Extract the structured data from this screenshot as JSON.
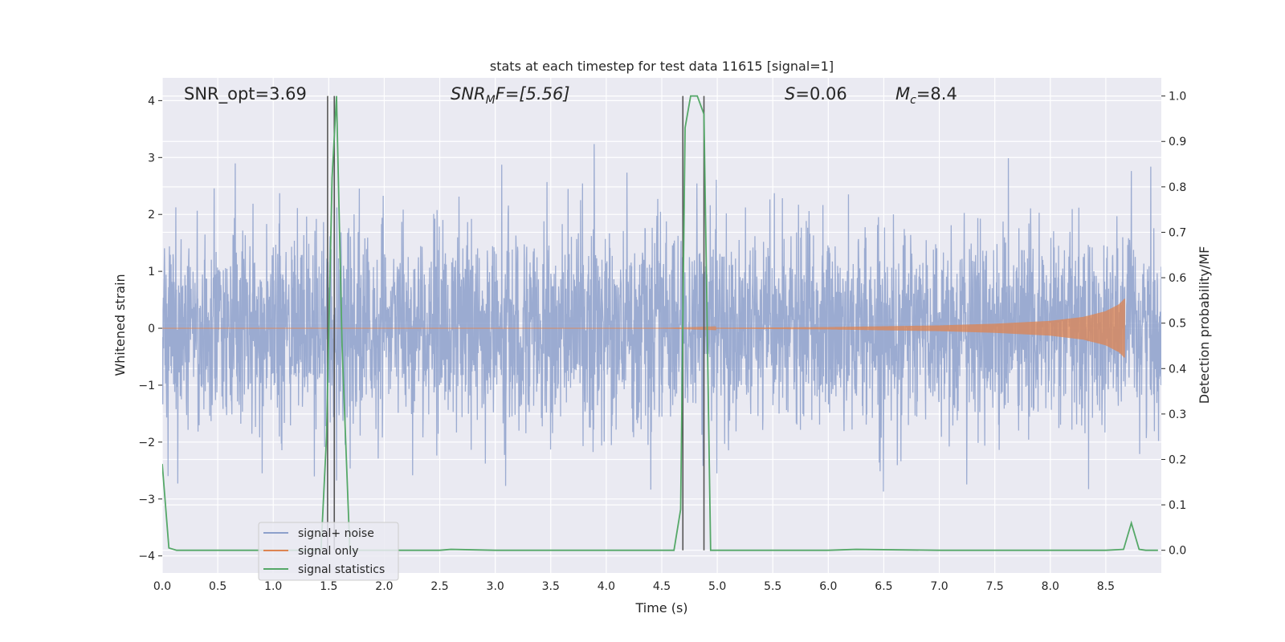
{
  "chart_data": {
    "type": "line",
    "title": "stats at each timestep for test data 11615 [signal=1]",
    "xlabel": "Time (s)",
    "ylabel_left": "Whitened strain",
    "ylabel_right": "Detection probability/MF",
    "xlim": [
      0,
      9.0
    ],
    "ylim_left": [
      -4.3,
      4.4
    ],
    "ylim_right": [
      -0.05,
      1.04
    ],
    "x_ticks": [
      0.0,
      0.5,
      1.0,
      1.5,
      2.0,
      2.5,
      3.0,
      3.5,
      4.0,
      4.5,
      5.0,
      5.5,
      6.0,
      6.5,
      7.0,
      7.5,
      8.0,
      8.5
    ],
    "x_tick_labels": [
      "0.0",
      "0.5",
      "1.0",
      "1.5",
      "2.0",
      "2.5",
      "3.0",
      "3.5",
      "4.0",
      "4.5",
      "5.0",
      "5.5",
      "6.0",
      "6.5",
      "7.0",
      "7.5",
      "8.0",
      "8.5"
    ],
    "y_ticks_left": [
      -4,
      -3,
      -2,
      -1,
      0,
      1,
      2,
      3,
      4
    ],
    "y_tick_labels_left": [
      "−4",
      "−3",
      "−2",
      "−1",
      "0",
      "1",
      "2",
      "3",
      "4"
    ],
    "y_ticks_right": [
      0.0,
      0.1,
      0.2,
      0.3,
      0.4,
      0.5,
      0.6,
      0.7,
      0.8,
      0.9,
      1.0
    ],
    "y_tick_labels_right": [
      "0.0",
      "0.1",
      "0.2",
      "0.3",
      "0.4",
      "0.5",
      "0.6",
      "0.7",
      "0.8",
      "0.9",
      "1.0"
    ],
    "grid": true,
    "legend_position": "lower-left",
    "annotations": {
      "snr_opt": "SNR_opt=3.69",
      "snr_mf_main": "SNR",
      "snr_mf_sub": "M",
      "snr_mf_tail": "F=[5.56]",
      "s_main": "S",
      "s_tail": "=0.06",
      "mc_main": "M",
      "mc_sub": "c",
      "mc_tail": "=8.4"
    },
    "series": [
      {
        "name": "signal+ noise",
        "axis": "left",
        "color": "#8da0cb",
        "description_of_shape": "dense whitened noise, typical envelope about ±1.6 with spikes up to ±3.9",
        "noise_std": 0.85,
        "x_range": [
          0.0,
          9.0
        ]
      },
      {
        "name": "signal only",
        "axis": "left",
        "color": "#dd8452",
        "chirp": {
          "start": 4.5,
          "end": 8.67,
          "amplitude_points": [
            [
              4.5,
              0.0
            ],
            [
              6.0,
              0.02
            ],
            [
              7.0,
              0.05
            ],
            [
              7.5,
              0.08
            ],
            [
              8.0,
              0.13
            ],
            [
              8.3,
              0.2
            ],
            [
              8.5,
              0.3
            ],
            [
              8.62,
              0.42
            ],
            [
              8.67,
              0.52
            ]
          ]
        }
      },
      {
        "name": "signal statistics",
        "axis": "right",
        "color": "#55a868",
        "x": [
          0.0,
          0.06,
          0.13,
          0.5,
          1.0,
          1.43,
          1.48,
          1.53,
          1.57,
          1.62,
          1.69,
          2.0,
          2.5,
          2.6,
          3.0,
          4.0,
          4.5,
          4.61,
          4.67,
          4.71,
          4.76,
          4.82,
          4.88,
          4.94,
          5.0,
          5.5,
          6.0,
          6.25,
          7.0,
          8.0,
          8.5,
          8.66,
          8.73,
          8.8,
          8.86,
          8.97
        ],
        "y": [
          0.19,
          0.005,
          0.0,
          0.0,
          0.0,
          0.0,
          0.25,
          0.82,
          1.0,
          0.45,
          0.0,
          0.0,
          0.0,
          0.002,
          0.0,
          0.0,
          0.0,
          0.0,
          0.09,
          0.93,
          1.0,
          1.0,
          0.96,
          0.0,
          0.0,
          0.0,
          0.0,
          0.002,
          0.0,
          0.0,
          0.0,
          0.002,
          0.06,
          0.002,
          0.0,
          0.0
        ]
      }
    ],
    "vertical_markers": [
      {
        "x": 1.49,
        "color": "#555555"
      },
      {
        "x": 1.55,
        "color": "#555555"
      },
      {
        "x": 4.69,
        "color": "#555555"
      },
      {
        "x": 4.88,
        "color": "#555555"
      }
    ]
  }
}
